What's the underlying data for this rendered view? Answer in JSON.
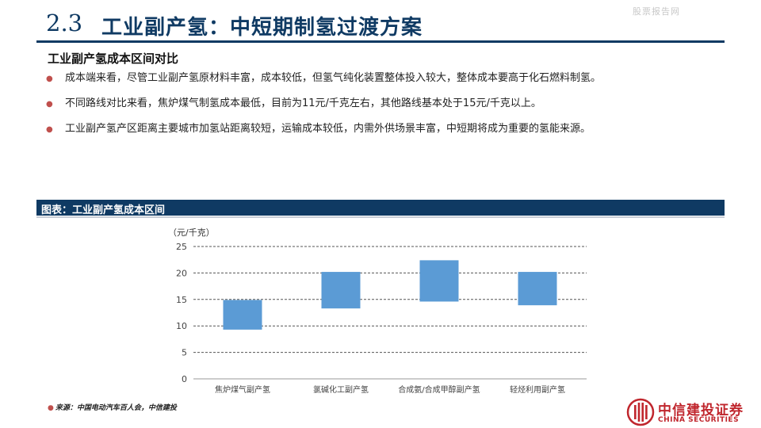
{
  "watermark": "股票报告网",
  "header": {
    "number": "2.3",
    "title": "工业副产氢：中短期制氢过渡方案"
  },
  "section_heading": "工业副产氢成本区间对比",
  "bullets": [
    "成本端来看，尽管工业副产氢原材料丰富，成本较低，但氢气纯化装置整体投入较大，整体成本要高于化石燃料制氢。",
    "不同路线对比来看，焦炉煤气制氢成本最低，目前为11元/千克左右，其他路线基本处于15元/千克以上。",
    "工业副产氢产区距离主要城市加氢站距离较短，运输成本较低，内需外供场景丰富，中短期将成为重要的氢能来源。"
  ],
  "figure_title": "图表：工业副产氢成本区间",
  "chart_data": {
    "type": "bar",
    "subtype": "floating-range",
    "unit_label": "（元/千克）",
    "categories": [
      "焦炉煤气副产氢",
      "氯碱化工副产氢",
      "合成氨/合成甲醇副产氢",
      "轻烃利用副产氢"
    ],
    "ranges": [
      {
        "low": 9.3,
        "high": 14.9
      },
      {
        "low": 13.3,
        "high": 20.2
      },
      {
        "low": 14.6,
        "high": 22.4
      },
      {
        "low": 13.9,
        "high": 20.2
      }
    ],
    "y_ticks": [
      "0",
      "5",
      "10",
      "15",
      "20",
      "25"
    ],
    "ylim": [
      0,
      25
    ],
    "grid": "horizontal dashed",
    "bar_color": "#5b9bd5"
  },
  "source": "来源：中国电动汽车百人会，中信建投",
  "logo": {
    "name_cn": "中信建投证券",
    "name_en": "CHINA SECURITIES"
  },
  "colors": {
    "brand_navy": "#0f3a63",
    "bullet_red": "#c0504d",
    "logo_red": "#c0262d"
  }
}
